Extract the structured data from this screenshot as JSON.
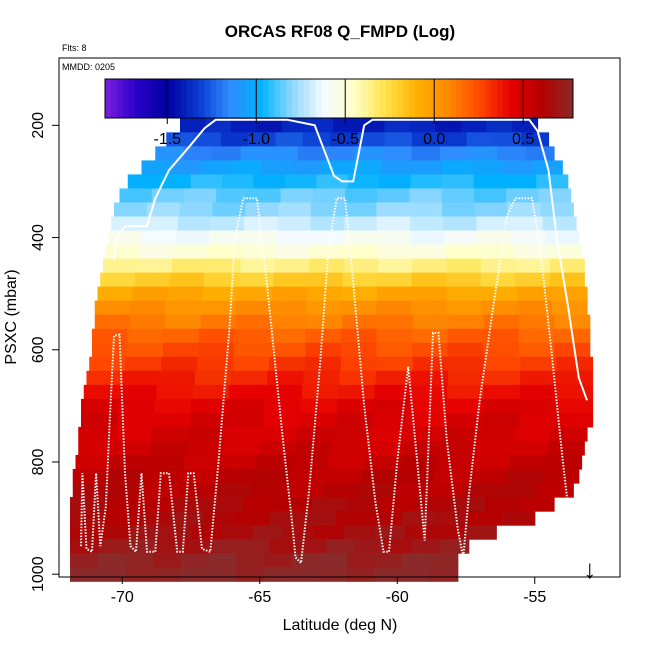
{
  "chart_data": {
    "type": "heatmap",
    "title": "ORCAS RF08 Q_FMPD (Log)",
    "flights_note": "Flts: 8",
    "date_note": "MMDD: 0205",
    "xlabel": "Latitude (deg N)",
    "ylabel": "PSXC (mbar)",
    "xlim": [
      -72.3,
      -51.9
    ],
    "ylim": [
      1005,
      80
    ],
    "x_ticks": [
      -70,
      -65,
      -60,
      -55
    ],
    "x_tick_labels": [
      "-70",
      "-65",
      "-60",
      "-55"
    ],
    "y_ticks": [
      200,
      400,
      600,
      800,
      1000
    ],
    "y_tick_labels": [
      "200",
      "400",
      "600",
      "800",
      "1000"
    ],
    "colorbar": {
      "range": [
        -1.85,
        0.78
      ],
      "ticks": [
        -1.5,
        -1.0,
        -0.5,
        0.0,
        0.5
      ],
      "tick_labels": [
        "-1.5",
        "-1.0",
        "-0.5",
        "0.0",
        "0.5"
      ],
      "colors": [
        "#7a1fe0",
        "#2b00c8",
        "#0000a0",
        "#0a3ad0",
        "#2f8cff",
        "#00b2ff",
        "#8fd8ff",
        "#f5fbff",
        "#ffffc4",
        "#ffe24a",
        "#ffb000",
        "#ff8a00",
        "#ff4a00",
        "#e60000",
        "#b40000",
        "#8b2a2a"
      ]
    },
    "layer_pressure_step": 25,
    "layers": [
      {
        "p": 200,
        "x_min": -67.9,
        "x_max": -54.9,
        "value": -1.4
      },
      {
        "p": 225,
        "x_min": -68.4,
        "x_max": -54.5,
        "value": -1.3
      },
      {
        "p": 250,
        "x_min": -68.8,
        "x_max": -54.3,
        "value": -1.15
      },
      {
        "p": 275,
        "x_min": -69.3,
        "x_max": -54.0,
        "value": -1.05
      },
      {
        "p": 300,
        "x_min": -69.8,
        "x_max": -53.8,
        "value": -0.95
      },
      {
        "p": 325,
        "x_min": -70.1,
        "x_max": -53.7,
        "value": -0.85
      },
      {
        "p": 350,
        "x_min": -70.3,
        "x_max": -53.6,
        "value": -0.8
      },
      {
        "p": 375,
        "x_min": -70.4,
        "x_max": -53.5,
        "value": -0.7
      },
      {
        "p": 400,
        "x_min": -70.5,
        "x_max": -53.4,
        "value": -0.6
      },
      {
        "p": 425,
        "x_min": -70.6,
        "x_max": -53.3,
        "value": -0.5
      },
      {
        "p": 450,
        "x_min": -70.7,
        "x_max": -53.2,
        "value": -0.35
      },
      {
        "p": 475,
        "x_min": -70.8,
        "x_max": -53.2,
        "value": -0.2
      },
      {
        "p": 500,
        "x_min": -70.9,
        "x_max": -53.1,
        "value": -0.05
      },
      {
        "p": 525,
        "x_min": -71.0,
        "x_max": -53.1,
        "value": 0.05
      },
      {
        "p": 550,
        "x_min": -71.0,
        "x_max": -53.0,
        "value": 0.12
      },
      {
        "p": 575,
        "x_min": -71.1,
        "x_max": -53.0,
        "value": 0.2
      },
      {
        "p": 600,
        "x_min": -71.1,
        "x_max": -53.0,
        "value": 0.25
      },
      {
        "p": 625,
        "x_min": -71.2,
        "x_max": -52.9,
        "value": 0.3
      },
      {
        "p": 650,
        "x_min": -71.3,
        "x_max": -52.9,
        "value": 0.35
      },
      {
        "p": 675,
        "x_min": -71.4,
        "x_max": -52.9,
        "value": 0.4
      },
      {
        "p": 700,
        "x_min": -71.5,
        "x_max": -52.9,
        "value": 0.45
      },
      {
        "p": 725,
        "x_min": -71.5,
        "x_max": -52.9,
        "value": 0.48
      },
      {
        "p": 750,
        "x_min": -71.6,
        "x_max": -53.1,
        "value": 0.5
      },
      {
        "p": 775,
        "x_min": -71.6,
        "x_max": -53.2,
        "value": 0.52
      },
      {
        "p": 800,
        "x_min": -71.7,
        "x_max": -53.3,
        "value": 0.55
      },
      {
        "p": 825,
        "x_min": -71.8,
        "x_max": -53.4,
        "value": 0.58
      },
      {
        "p": 850,
        "x_min": -71.8,
        "x_max": -53.6,
        "value": 0.6
      },
      {
        "p": 875,
        "x_min": -71.9,
        "x_max": -54.3,
        "value": 0.62
      },
      {
        "p": 900,
        "x_min": -71.9,
        "x_max": -55.0,
        "value": 0.64
      },
      {
        "p": 925,
        "x_min": -71.9,
        "x_max": -56.4,
        "value": 0.66
      },
      {
        "p": 950,
        "x_min": -71.9,
        "x_max": -57.4,
        "value": 0.7
      },
      {
        "p": 975,
        "x_min": -71.9,
        "x_max": -57.8,
        "value": 0.75
      },
      {
        "p": 1000,
        "x_min": -71.9,
        "x_max": -57.8,
        "value": 0.78
      }
    ],
    "flight_track": [
      {
        "lat": -71.5,
        "p": 950
      },
      {
        "lat": -71.45,
        "p": 820
      },
      {
        "lat": -71.3,
        "p": 955
      },
      {
        "lat": -71.1,
        "p": 960
      },
      {
        "lat": -70.95,
        "p": 820
      },
      {
        "lat": -70.8,
        "p": 950
      },
      {
        "lat": -70.6,
        "p": 880
      },
      {
        "lat": -70.45,
        "p": 720
      },
      {
        "lat": -70.3,
        "p": 575
      },
      {
        "lat": -70.1,
        "p": 573
      },
      {
        "lat": -69.9,
        "p": 820
      },
      {
        "lat": -69.7,
        "p": 950
      },
      {
        "lat": -69.5,
        "p": 960
      },
      {
        "lat": -69.3,
        "p": 820
      },
      {
        "lat": -69.1,
        "p": 960
      },
      {
        "lat": -68.8,
        "p": 960
      },
      {
        "lat": -68.6,
        "p": 820
      },
      {
        "lat": -68.3,
        "p": 820
      },
      {
        "lat": -68.0,
        "p": 960
      },
      {
        "lat": -67.8,
        "p": 960
      },
      {
        "lat": -67.6,
        "p": 820
      },
      {
        "lat": -67.4,
        "p": 820
      },
      {
        "lat": -67.1,
        "p": 955
      },
      {
        "lat": -66.8,
        "p": 960
      },
      {
        "lat": -66.5,
        "p": 800
      },
      {
        "lat": -66.1,
        "p": 560
      },
      {
        "lat": -65.9,
        "p": 400
      },
      {
        "lat": -65.6,
        "p": 330
      },
      {
        "lat": -65.1,
        "p": 330
      },
      {
        "lat": -64.7,
        "p": 500
      },
      {
        "lat": -64.2,
        "p": 740
      },
      {
        "lat": -63.8,
        "p": 920
      },
      {
        "lat": -63.7,
        "p": 970
      },
      {
        "lat": -63.5,
        "p": 980
      },
      {
        "lat": -63.2,
        "p": 850
      },
      {
        "lat": -62.8,
        "p": 620
      },
      {
        "lat": -62.5,
        "p": 420
      },
      {
        "lat": -62.2,
        "p": 330
      },
      {
        "lat": -61.9,
        "p": 330
      },
      {
        "lat": -61.6,
        "p": 480
      },
      {
        "lat": -61.2,
        "p": 700
      },
      {
        "lat": -60.8,
        "p": 870
      },
      {
        "lat": -60.5,
        "p": 960
      },
      {
        "lat": -60.3,
        "p": 960
      },
      {
        "lat": -60.0,
        "p": 800
      },
      {
        "lat": -59.6,
        "p": 630
      },
      {
        "lat": -59.0,
        "p": 940
      },
      {
        "lat": -58.7,
        "p": 570
      },
      {
        "lat": -58.5,
        "p": 570
      },
      {
        "lat": -58.2,
        "p": 760
      },
      {
        "lat": -57.8,
        "p": 920
      },
      {
        "lat": -57.6,
        "p": 970
      },
      {
        "lat": -57.4,
        "p": 860
      },
      {
        "lat": -57.0,
        "p": 690
      },
      {
        "lat": -56.5,
        "p": 520
      },
      {
        "lat": -56.0,
        "p": 360
      },
      {
        "lat": -55.7,
        "p": 330
      },
      {
        "lat": -55.1,
        "p": 330
      },
      {
        "lat": -54.8,
        "p": 420
      },
      {
        "lat": -54.4,
        "p": 600
      },
      {
        "lat": -54.0,
        "p": 790
      },
      {
        "lat": -53.6,
        "p": 960
      }
    ],
    "flight_track_upper": [
      {
        "lat": -70.3,
        "p": 440
      },
      {
        "lat": -70.2,
        "p": 400
      },
      {
        "lat": -69.9,
        "p": 380
      },
      {
        "lat": -69.1,
        "p": 380
      },
      {
        "lat": -68.8,
        "p": 330
      },
      {
        "lat": -68.3,
        "p": 280
      },
      {
        "lat": -67.6,
        "p": 240
      },
      {
        "lat": -67.0,
        "p": 205
      },
      {
        "lat": -66.6,
        "p": 190
      },
      {
        "lat": -64.0,
        "p": 190
      },
      {
        "lat": -63.0,
        "p": 200
      },
      {
        "lat": -62.3,
        "p": 290
      },
      {
        "lat": -62.0,
        "p": 300
      },
      {
        "lat": -61.6,
        "p": 300
      },
      {
        "lat": -61.2,
        "p": 200
      },
      {
        "lat": -60.9,
        "p": 190
      },
      {
        "lat": -55.2,
        "p": 190
      },
      {
        "lat": -54.9,
        "p": 210
      },
      {
        "lat": -54.5,
        "p": 280
      },
      {
        "lat": -54.2,
        "p": 400
      },
      {
        "lat": -53.8,
        "p": 520
      },
      {
        "lat": -53.4,
        "p": 650
      },
      {
        "lat": -53.1,
        "p": 690
      }
    ],
    "arrow_marker": {
      "lat": -53.0,
      "label": "↓"
    }
  }
}
